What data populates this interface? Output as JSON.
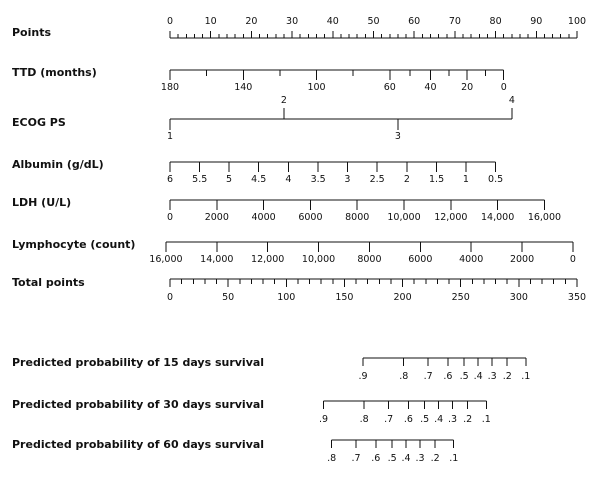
{
  "chart_data": {
    "type": "nomogram",
    "points_scale": {
      "label": "Points",
      "min": 0,
      "max": 100,
      "major": [
        0,
        10,
        20,
        30,
        40,
        50,
        60,
        70,
        80,
        90,
        100
      ],
      "minor_step": 2
    },
    "variables": [
      {
        "label": "TTD (months)",
        "labels": [
          "180",
          "140",
          "100",
          "60",
          "40",
          "20",
          "0"
        ],
        "values": [
          180,
          140,
          100,
          60,
          40,
          20,
          0
        ],
        "points": [
          0,
          18,
          36,
          54,
          64,
          73,
          82
        ]
      },
      {
        "label": "ECOG PS",
        "labels": [
          "1",
          "2",
          "3",
          "4"
        ],
        "values": [
          1,
          2,
          3,
          4
        ],
        "points": [
          0,
          28,
          56,
          84
        ]
      },
      {
        "label": "Albumin (g/dL)",
        "labels": [
          "6",
          "5.5",
          "5",
          "4.5",
          "4",
          "3.5",
          "3",
          "2.5",
          "2",
          "1.5",
          "1",
          "0.5"
        ],
        "values": [
          6,
          5.5,
          5,
          4.5,
          4,
          3.5,
          3,
          2.5,
          2,
          1.5,
          1,
          0.5
        ],
        "points": [
          0,
          7.3,
          14.5,
          21.8,
          29.1,
          36.4,
          43.6,
          50.9,
          58.2,
          65.5,
          72.7,
          80
        ]
      },
      {
        "label": "LDH (U/L)",
        "labels": [
          "0",
          "2000",
          "4000",
          "6000",
          "8000",
          "10,000",
          "12,000",
          "14,000",
          "16,000"
        ],
        "values": [
          0,
          2000,
          4000,
          6000,
          8000,
          10000,
          12000,
          14000,
          16000
        ],
        "points": [
          0,
          11.5,
          23,
          34.5,
          46,
          57.5,
          69,
          80.5,
          92
        ]
      },
      {
        "label": "Lymphocyte (count)",
        "labels": [
          "16,000",
          "14,000",
          "12,000",
          "10,000",
          "8000",
          "6000",
          "4000",
          "2000",
          "0"
        ],
        "values": [
          16000,
          14000,
          12000,
          10000,
          8000,
          6000,
          4000,
          2000,
          0
        ],
        "points": [
          -1,
          11.5,
          24,
          36.5,
          49,
          61.5,
          74,
          86.5,
          99
        ]
      }
    ],
    "total_points": {
      "label": "Total points",
      "min": 0,
      "max": 350,
      "major": [
        0,
        50,
        100,
        150,
        200,
        250,
        300,
        350
      ],
      "minor_step": 10
    },
    "predictions": [
      {
        "label": "Predicted probability of 15 days survival",
        "labels": [
          ".9",
          ".8",
          ".7",
          ".6",
          ".5",
          ".4",
          ".3",
          ".2",
          ".1"
        ],
        "values": [
          0.9,
          0.8,
          0.7,
          0.6,
          0.5,
          0.4,
          0.3,
          0.2,
          0.1
        ],
        "total_points": [
          166,
          201,
          222,
          239,
          253,
          265,
          277,
          290,
          306
        ]
      },
      {
        "label": "Predicted probability of 30 days survival",
        "labels": [
          ".9",
          ".8",
          ".7",
          ".6",
          ".5",
          ".4",
          ".3",
          ".2",
          ".1"
        ],
        "values": [
          0.9,
          0.8,
          0.7,
          0.6,
          0.5,
          0.4,
          0.3,
          0.2,
          0.1
        ],
        "total_points": [
          132,
          167,
          188,
          205,
          219,
          231,
          243,
          256,
          272
        ]
      },
      {
        "label": "Predicted probability of 60 days survival",
        "labels": [
          ".8",
          ".7",
          ".6",
          ".5",
          ".4",
          ".3",
          ".2",
          ".1"
        ],
        "values": [
          0.8,
          0.7,
          0.6,
          0.5,
          0.4,
          0.3,
          0.2,
          0.1
        ],
        "total_points": [
          139,
          160,
          177,
          191,
          203,
          215,
          228,
          244
        ]
      }
    ]
  }
}
